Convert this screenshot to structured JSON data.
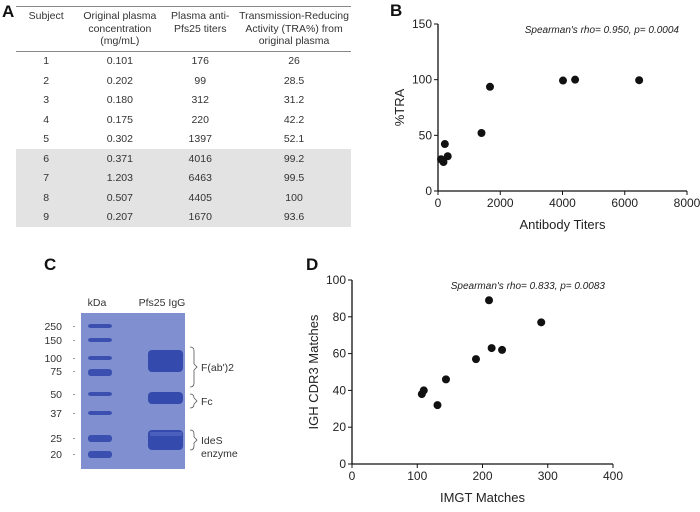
{
  "panels": {
    "a": "A",
    "b": "B",
    "c": "C",
    "d": "D"
  },
  "table": {
    "headers": [
      "Subject",
      "Original plasma concentration (mg/mL)",
      "Plasma anti-Pfs25 titers",
      "Transmission-Reducing Activity (TRA%) from original plasma"
    ],
    "rows": [
      [
        "1",
        "0.101",
        "176",
        "26"
      ],
      [
        "2",
        "0.202",
        "99",
        "28.5"
      ],
      [
        "3",
        "0.180",
        "312",
        "31.2"
      ],
      [
        "4",
        "0.175",
        "220",
        "42.2"
      ],
      [
        "5",
        "0.302",
        "1397",
        "52.1"
      ],
      [
        "6",
        "0.371",
        "4016",
        "99.2"
      ],
      [
        "7",
        "1.203",
        "6463",
        "99.5"
      ],
      [
        "8",
        "0.507",
        "4405",
        "100"
      ],
      [
        "9",
        "0.207",
        "1670",
        "93.6"
      ]
    ],
    "highlighted_rows": [
      6,
      7,
      8,
      9
    ],
    "highlight_color": "#e3e3e3"
  },
  "gel": {
    "lane_labels": [
      "kDa",
      "Pfs25 IgG"
    ],
    "markers": [
      "250",
      "150",
      "100",
      "75",
      "50",
      "37",
      "25",
      "20"
    ],
    "annotations": [
      "F(ab')2",
      "Fc",
      "IdeS enzyme"
    ],
    "gel_color": "#7f8fd0"
  },
  "chart_data": [
    {
      "type": "scatter",
      "xlabel": "Antibody Titers",
      "ylabel": "%TRA",
      "xlim": [
        0,
        8000
      ],
      "ylim": [
        0,
        150
      ],
      "xticks": [
        "0",
        "2000",
        "4000",
        "6000",
        "8000"
      ],
      "yticks": [
        "0",
        "50",
        "100",
        "150"
      ],
      "annotation": "Spearman's rho= 0.950, p= 0.0004",
      "points": [
        [
          176,
          26
        ],
        [
          99,
          28.5
        ],
        [
          312,
          31.2
        ],
        [
          220,
          42.2
        ],
        [
          1397,
          52.1
        ],
        [
          4016,
          99.2
        ],
        [
          6463,
          99.5
        ],
        [
          4405,
          100
        ],
        [
          1670,
          93.6
        ]
      ]
    },
    {
      "type": "scatter",
      "xlabel": "IMGT Matches",
      "ylabel": "IGH CDR3  Matches",
      "xlim": [
        0,
        400
      ],
      "ylim": [
        0,
        100
      ],
      "xticks": [
        "0",
        "100",
        "200",
        "300",
        "400"
      ],
      "yticks": [
        "0",
        "20",
        "40",
        "60",
        "80",
        "100"
      ],
      "annotation": "Spearman's rho= 0.833, p= 0.0083",
      "points": [
        [
          107,
          38
        ],
        [
          110,
          40
        ],
        [
          131,
          32
        ],
        [
          144,
          46
        ],
        [
          190,
          57
        ],
        [
          210,
          89
        ],
        [
          214,
          63
        ],
        [
          230,
          62
        ],
        [
          290,
          77
        ]
      ]
    }
  ]
}
